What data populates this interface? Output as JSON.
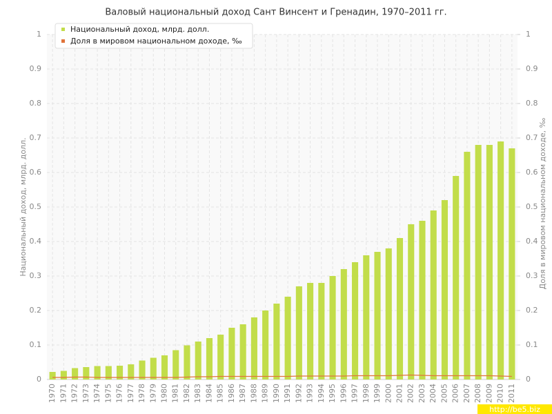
{
  "chart_data": {
    "type": "bar",
    "title": "Валовый национальный доход Сант Винсент и Гренадин, 1970–2011 гг.",
    "y_label": "Национальный доход, млрд. долл.",
    "y2_label": "Доля в мировом национальном доходе, ‰",
    "watermark": "http://be5.biz",
    "categories": [
      "1970",
      "1971",
      "1972",
      "1973",
      "1974",
      "1975",
      "1976",
      "1977",
      "1978",
      "1979",
      "1980",
      "1981",
      "1982",
      "1983",
      "1984",
      "1985",
      "1986",
      "1987",
      "1988",
      "1989",
      "1990",
      "1991",
      "1992",
      "1993",
      "1994",
      "1995",
      "1996",
      "1997",
      "1998",
      "1999",
      "2000",
      "2001",
      "2002",
      "2003",
      "2004",
      "2005",
      "2006",
      "2007",
      "2008",
      "2009",
      "2010",
      "2011"
    ],
    "series": [
      {
        "name": "Национальный доход, млрд. долл.",
        "color": "#c2dd4a",
        "values": [
          0.022,
          0.025,
          0.033,
          0.036,
          0.039,
          0.039,
          0.04,
          0.044,
          0.055,
          0.063,
          0.07,
          0.085,
          0.099,
          0.11,
          0.12,
          0.13,
          0.15,
          0.16,
          0.18,
          0.2,
          0.22,
          0.24,
          0.27,
          0.28,
          0.28,
          0.3,
          0.32,
          0.34,
          0.36,
          0.37,
          0.38,
          0.41,
          0.45,
          0.46,
          0.49,
          0.52,
          0.59,
          0.66,
          0.68,
          0.68,
          0.69,
          0.67
        ]
      },
      {
        "name": "Доля в мировом национальном доходе, ‰",
        "color": "#e0733a",
        "axis": "y2",
        "values": [
          0.006,
          0.006,
          0.007,
          0.007,
          0.006,
          0.006,
          0.006,
          0.006,
          0.006,
          0.006,
          0.006,
          0.006,
          0.007,
          0.008,
          0.008,
          0.009,
          0.009,
          0.009,
          0.009,
          0.009,
          0.009,
          0.009,
          0.01,
          0.01,
          0.01,
          0.01,
          0.01,
          0.011,
          0.011,
          0.011,
          0.011,
          0.012,
          0.013,
          0.012,
          0.011,
          0.011,
          0.011,
          0.011,
          0.011,
          0.011,
          0.01,
          0.009
        ]
      }
    ],
    "ylim": [
      0,
      1
    ],
    "yticks": [
      0,
      0.1,
      0.2,
      0.3,
      0.4,
      0.5,
      0.6,
      0.7,
      0.8,
      0.9,
      1
    ],
    "y2lim": [
      0,
      1
    ],
    "y2ticks": [
      0,
      0.1,
      0.2,
      0.3,
      0.4,
      0.5,
      0.6,
      0.7,
      0.8,
      0.9,
      1
    ],
    "grid": true
  }
}
